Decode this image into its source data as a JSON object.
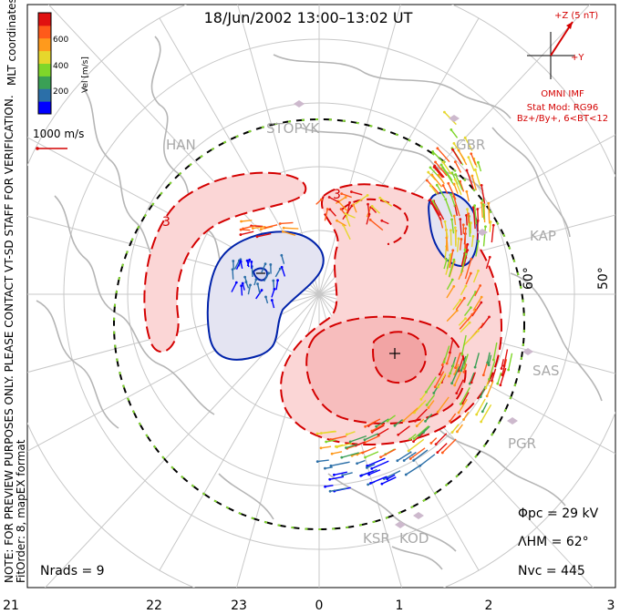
{
  "title": "18/Jun/2002  13:00–13:02  UT",
  "colorbar": {
    "label": "Vel [m/s]",
    "ticks": [
      "600",
      "400",
      "200"
    ],
    "colors": [
      "#0000ff",
      "#2b6fa8",
      "#3aa055",
      "#7fd62a",
      "#e6d72c",
      "#ff9a1c",
      "#ff5a1a",
      "#e01010"
    ]
  },
  "coord_label": "MLT coordinates",
  "vector_scale_label": "1000 m/s",
  "side_note": "NOTE: FOR PREVIEW PURPOSES ONLY. PLEASE CONTACT VT-SD STAFF FOR VERIFICATION.",
  "fit_order_label": "FitOrder: 8, mapEX format",
  "imf": {
    "z_label": "+Z (5 nT)",
    "y_label": "+Y",
    "title": "OMNI IMF",
    "model_line1": "Stat Mod: RG96",
    "model_line2": "Bz+/By+, 6<BT<12"
  },
  "stations": [
    "STOPYK",
    "HAN",
    "GBR",
    "KAP",
    "SAS",
    "PGR",
    "KSR",
    "KOD"
  ],
  "latitude_labels": [
    "60°",
    "50°"
  ],
  "stats": {
    "phi_pc": "Φpc  =  29 kV",
    "lambda_hm": "ΛHM  =  62°",
    "n_vc": "Nvc  =  445",
    "n_rads": "Nrads  =  9"
  },
  "mlt_ticks": [
    "21",
    "22",
    "23",
    "0",
    "1",
    "2",
    "3"
  ],
  "contour_colors": {
    "positive": "#d40000",
    "negative": "#0022aa",
    "hmb": "#000000"
  }
}
